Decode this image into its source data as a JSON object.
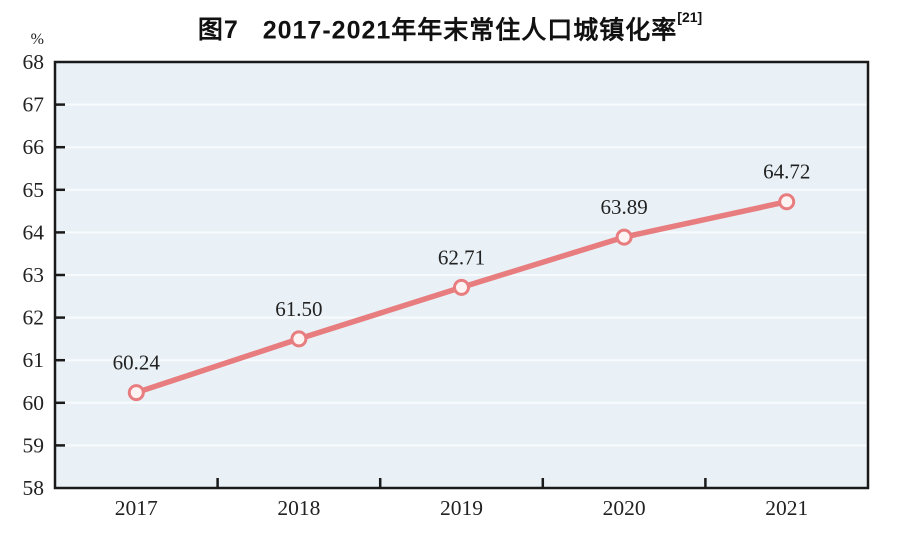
{
  "figure": {
    "title_prefix": "图7",
    "title_main": "2017-2021年年末常住人口城镇化率",
    "title_superscript": "[21]",
    "unit_label": "%"
  },
  "chart_data": {
    "type": "line",
    "title": "图7 2017-2021年年末常住人口城镇化率[21]",
    "categories": [
      "2017",
      "2018",
      "2019",
      "2020",
      "2021"
    ],
    "series": [
      {
        "name": "年末常住人口城镇化率",
        "values": [
          60.24,
          61.5,
          62.71,
          63.89,
          64.72
        ],
        "data_labels": [
          "60.24",
          "61.50",
          "62.71",
          "63.89",
          "64.72"
        ]
      }
    ],
    "xlabel": "",
    "ylabel": "%",
    "ylim": [
      58,
      68
    ],
    "ytick_step": 1,
    "grid": "horizontal",
    "legend": "none",
    "colors": {
      "line": "#e87d80",
      "marker_fill": "#fdf3f2",
      "plot_bg": "#e9f1f6",
      "grid_line": "#f8fbfd",
      "border": "#1a1a1a",
      "text": "#222222"
    }
  }
}
